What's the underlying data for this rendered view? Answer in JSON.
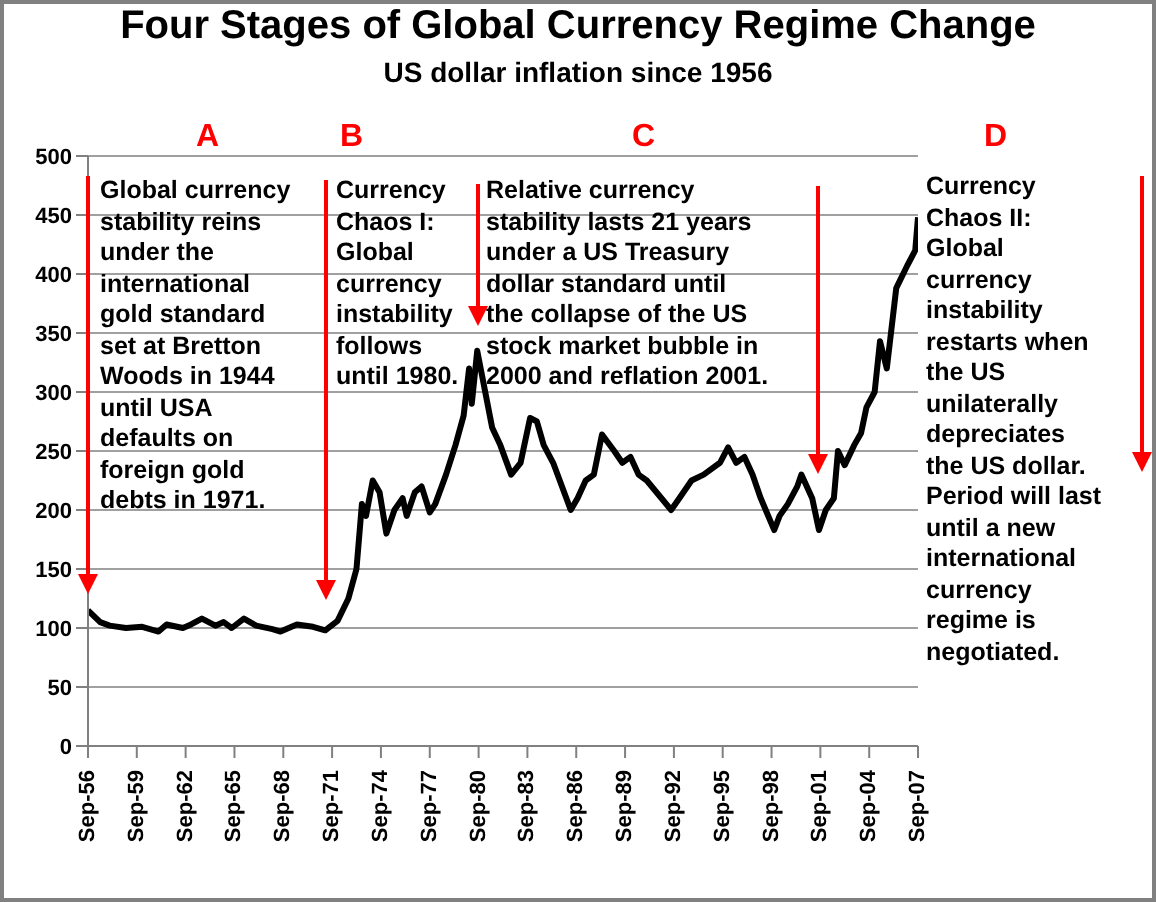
{
  "chart_data": {
    "type": "line",
    "title": "Four Stages of Global Currency Regime Change",
    "subtitle": "US dollar inflation since 1956",
    "annotations": [
      "A",
      "B",
      "C",
      "D",
      "Global currency\nstability reins\nunder the\ninternational\ngold standard\nset at Bretton\nWoods in 1944\nuntil USA\ndefaults on\nforeign gold\ndebts in 1971.",
      "Currency\nChaos I:\nGlobal\ncurrency\ninstability\nfollows\nuntil 1980.",
      "Relative currency\nstability lasts 21 years\nunder a US Treasury\ndollar standard until\nthe collapse of the US\nstock market bubble in\n2000 and reflation 2001.",
      "Currency\nChaos II:\nGlobal\ncurrency\ninstability\nrestarts when\nthe US\nunilaterally\ndepreciates\nthe US dollar.\nPeriod will last\nuntil a new\ninternational\ncurrency\nregime is\nnegotiated."
    ],
    "x": [
      "1956-09",
      "1957-06",
      "1958-01",
      "1959-01",
      "1960-01",
      "1961-01",
      "1961-07",
      "1962-07",
      "1963-01",
      "1963-09",
      "1964-07",
      "1965-01",
      "1965-07",
      "1966-04",
      "1967-01",
      "1968-01",
      "1968-07",
      "1969-07",
      "1970-07",
      "1971-04",
      "1972-01",
      "1972-09",
      "1973-03",
      "1973-07",
      "1973-10",
      "1974-03",
      "1974-08",
      "1975-01",
      "1975-07",
      "1976-01",
      "1976-04",
      "1976-10",
      "1977-03",
      "1977-09",
      "1978-01",
      "1978-09",
      "1979-04",
      "1979-10",
      "1980-02",
      "1980-04",
      "1980-08",
      "1981-07",
      "1982-01",
      "1982-09",
      "1983-04",
      "1983-11",
      "1984-04",
      "1984-09",
      "1985-04",
      "1986-05",
      "1986-10",
      "1987-04",
      "1987-10",
      "1988-04",
      "1989-01",
      "1989-07",
      "1990-01",
      "1990-07",
      "1991-01",
      "1992-07",
      "1993-01",
      "1993-10",
      "1994-07",
      "1995-07",
      "1996-01",
      "1996-07",
      "1997-01",
      "1997-07",
      "1998-01",
      "1998-11",
      "1999-03",
      "1999-09",
      "2000-04",
      "2000-07",
      "2001-03",
      "2001-08",
      "2002-01",
      "2002-07",
      "2002-10",
      "2003-03",
      "2003-10",
      "2004-03",
      "2004-07",
      "2005-01",
      "2005-05",
      "2005-10",
      "2006-05",
      "2007-01",
      "2007-07",
      "2007-09"
    ],
    "series": [
      {
        "color": "#000000",
        "values": [
          115,
          105,
          102,
          100,
          101,
          97,
          103,
          100,
          103,
          108,
          102,
          105,
          100,
          108,
          102,
          99,
          97,
          103,
          101,
          98,
          106,
          125,
          150,
          205,
          195,
          225,
          215,
          180,
          200,
          210,
          195,
          215,
          220,
          198,
          205,
          230,
          255,
          280,
          320,
          290,
          335,
          270,
          255,
          230,
          240,
          278,
          275,
          255,
          240,
          200,
          210,
          225,
          230,
          264,
          250,
          240,
          245,
          230,
          225,
          200,
          210,
          225,
          230,
          240,
          253,
          240,
          245,
          230,
          210,
          183,
          195,
          205,
          220,
          230,
          210,
          183,
          200,
          210,
          250,
          238,
          255,
          265,
          287,
          300,
          343,
          320,
          388,
          407,
          420,
          448
        ]
      }
    ],
    "xlim": [
      "1956-09",
      "2007-09"
    ],
    "xticks": [
      {
        "value": "1956-09",
        "label": "Sep-56"
      },
      {
        "value": "1959-09",
        "label": "Sep-59"
      },
      {
        "value": "1962-09",
        "label": "Sep-62"
      },
      {
        "value": "1965-09",
        "label": "Sep-65"
      },
      {
        "value": "1968-09",
        "label": "Sep-68"
      },
      {
        "value": "1971-09",
        "label": "Sep-71"
      },
      {
        "value": "1974-09",
        "label": "Sep-74"
      },
      {
        "value": "1977-09",
        "label": "Sep-77"
      },
      {
        "value": "1980-09",
        "label": "Sep-80"
      },
      {
        "value": "1983-09",
        "label": "Sep-83"
      },
      {
        "value": "1986-09",
        "label": "Sep-86"
      },
      {
        "value": "1989-09",
        "label": "Sep-89"
      },
      {
        "value": "1992-09",
        "label": "Sep-92"
      },
      {
        "value": "1995-09",
        "label": "Sep-95"
      },
      {
        "value": "1998-09",
        "label": "Sep-98"
      },
      {
        "value": "2001-09",
        "label": "Sep-01"
      },
      {
        "value": "2004-09",
        "label": "Sep-04"
      },
      {
        "value": "2007-09",
        "label": "Sep-07"
      }
    ],
    "ylim": [
      0,
      500
    ],
    "yticks": [
      0,
      50,
      100,
      150,
      200,
      250,
      300,
      350,
      400,
      450,
      500
    ],
    "grid": "y",
    "legend": false,
    "marker": "none",
    "line_style": "solid"
  }
}
